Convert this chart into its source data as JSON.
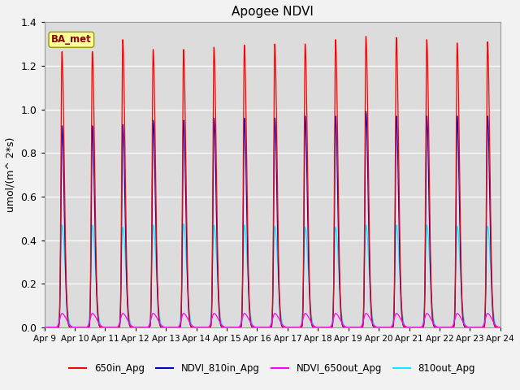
{
  "title": "Apogee NDVI",
  "ylabel": "umol/(m^ 2*s)",
  "ylim": [
    0,
    1.4
  ],
  "yticks": [
    0.0,
    0.2,
    0.4,
    0.6,
    0.8,
    1.0,
    1.2,
    1.4
  ],
  "x_tick_labels": [
    "Apr 9",
    "Apr 10",
    "Apr 11",
    "Apr 12",
    "Apr 13",
    "Apr 14",
    "Apr 15",
    "Apr 16",
    "Apr 17",
    "Apr 18",
    "Apr 19",
    "Apr 20",
    "Apr 21",
    "Apr 22",
    "Apr 23",
    "Apr 24"
  ],
  "num_cycles": 15,
  "peaks": {
    "red_heights": [
      1.265,
      1.265,
      1.32,
      1.275,
      1.275,
      1.285,
      1.295,
      1.3,
      1.3,
      1.32,
      1.335,
      1.33,
      1.32,
      1.305,
      1.31
    ],
    "blue_heights": [
      0.925,
      0.925,
      0.93,
      0.95,
      0.95,
      0.96,
      0.96,
      0.96,
      0.97,
      0.97,
      0.99,
      0.97,
      0.97,
      0.97,
      0.97
    ],
    "cyan_heights": [
      0.47,
      0.47,
      0.46,
      0.47,
      0.475,
      0.47,
      0.47,
      0.465,
      0.46,
      0.46,
      0.47,
      0.47,
      0.47,
      0.465,
      0.465
    ],
    "magenta_heights": [
      0.065,
      0.065,
      0.065,
      0.065,
      0.065,
      0.065,
      0.065,
      0.065,
      0.065,
      0.065,
      0.065,
      0.065,
      0.065,
      0.065,
      0.065
    ]
  },
  "colors": {
    "red": "#FF0000",
    "blue": "#0000CC",
    "cyan": "#00EEFF",
    "magenta": "#FF00FF"
  },
  "legend_labels": [
    "650in_Apg",
    "NDVI_810in_Apg",
    "NDVI_650out_Apg",
    "810out_Apg"
  ],
  "annotation_text": "BA_met",
  "annotation_color": "#8B0000",
  "annotation_bg": "#FFFF99",
  "plot_bg": "#DCDCDC",
  "fig_bg": "#F2F2F2"
}
